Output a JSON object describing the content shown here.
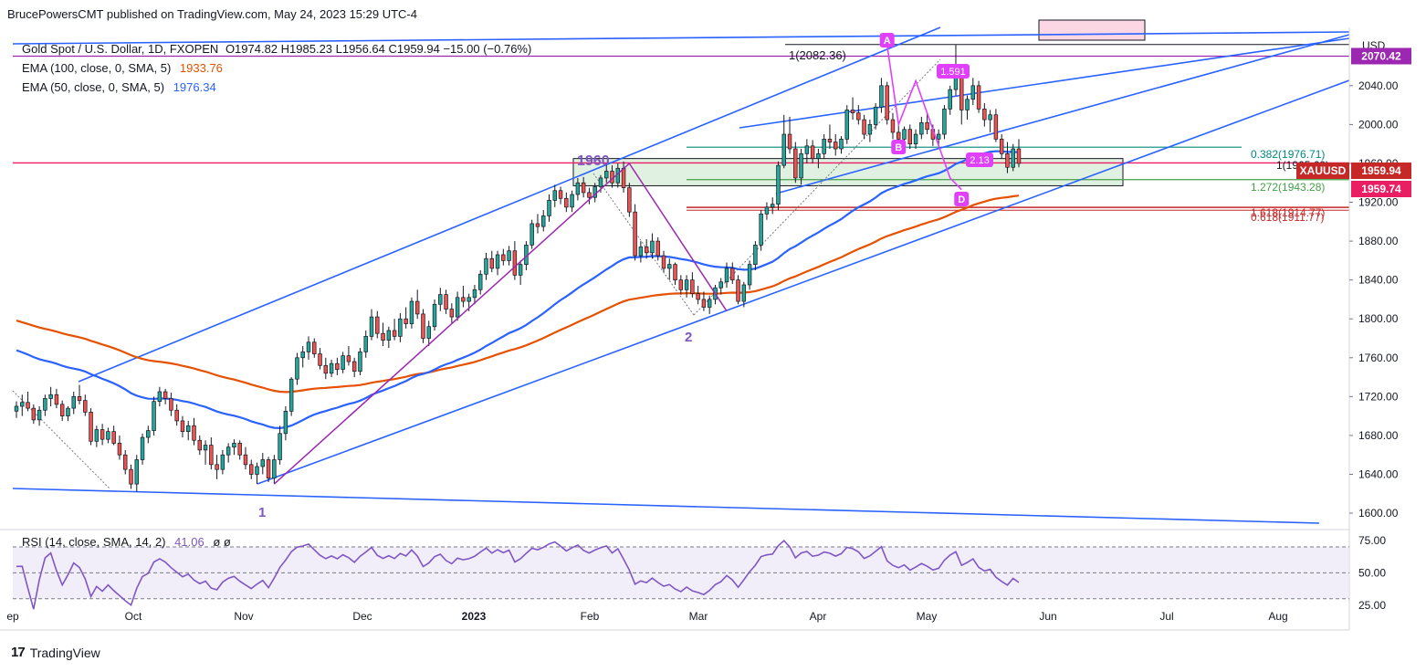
{
  "header": {
    "author": "BrucePowersCMT",
    "published_on": "published on TradingView.com, May 24, 2023 15:29 UTC-4"
  },
  "legend": {
    "symbol": "Gold Spot / U.S. Dollar, 1D, FXOPEN",
    "ohlc": "O1974.82  H1985.23  L1956.64  C1959.94  −15.00 (−0.76%)",
    "ema100_label": "EMA (100, close, 0, SMA, 5)",
    "ema100_value": "1933.76",
    "ema50_label": "EMA (50, close, 0, SMA, 5)",
    "ema50_value": "1976.34",
    "rsi_label": "RSI (14, close, SMA, 14, 2)",
    "rsi_value": "41.06",
    "rsi_extra": "ø  ø"
  },
  "footer": {
    "brand": "TradingView",
    "brand_mark": "17"
  },
  "colors": {
    "up": "#26a69a",
    "down": "#ef5350",
    "ema50": "#2962ff",
    "ema100": "#e65100",
    "channel": "#2962ff",
    "harmonic": "#e040fb",
    "pink_line": "#e91e63",
    "purple_line": "#9c27b0",
    "rsi": "#7e57c2",
    "zone": "#c8e6c9"
  },
  "chart_data": {
    "type": "candlestick",
    "title": "",
    "currency": "USD",
    "ylim": [
      1585,
      2100
    ],
    "y_ticks": [
      1600,
      1640,
      1680,
      1720,
      1760,
      1800,
      1840,
      1880,
      1920,
      1960,
      2000,
      2040
    ],
    "x_ticks": [
      "ep",
      "Oct",
      "Nov",
      "Dec",
      "2023",
      "Feb",
      "Mar",
      "Apr",
      "May",
      "Jun",
      "Jul",
      "Aug"
    ],
    "price_labels": {
      "current_symbol": "XAUUSD",
      "current": "1959.94",
      "secondary": "1959.74",
      "resistance": "2070.42"
    },
    "fib_labels": [
      {
        "text": "0.382(1976.71)",
        "price": 1976.71
      },
      {
        "text": "1(1965.69)",
        "price": 1965.69
      },
      {
        "text": "1.272(1943.28)",
        "price": 1943.28
      },
      {
        "text": "1.618(1914.77)",
        "price": 1914.77
      },
      {
        "text": "0.618(1911.77)",
        "price": 1911.77
      }
    ],
    "annotations": [
      {
        "text": "1960"
      },
      {
        "text": "1"
      },
      {
        "text": "2"
      },
      {
        "text": "1(2082.36)"
      },
      {
        "text": "1.591"
      },
      {
        "text": "2.13"
      },
      {
        "text": "A"
      },
      {
        "text": "B"
      },
      {
        "text": "D"
      }
    ],
    "levels": {
      "pink": 1960.5,
      "purple": 2070.42,
      "top_black": 2082.36
    },
    "candles": [
      [
        1705,
        1715,
        1698,
        1710
      ],
      [
        1710,
        1722,
        1700,
        1714
      ],
      [
        1714,
        1725,
        1705,
        1708
      ],
      [
        1708,
        1712,
        1692,
        1696
      ],
      [
        1696,
        1710,
        1690,
        1706
      ],
      [
        1706,
        1722,
        1700,
        1718
      ],
      [
        1718,
        1730,
        1710,
        1722
      ],
      [
        1722,
        1728,
        1708,
        1712
      ],
      [
        1712,
        1716,
        1695,
        1700
      ],
      [
        1700,
        1710,
        1695,
        1708
      ],
      [
        1708,
        1725,
        1702,
        1720
      ],
      [
        1720,
        1732,
        1712,
        1716
      ],
      [
        1716,
        1722,
        1700,
        1704
      ],
      [
        1704,
        1708,
        1670,
        1674
      ],
      [
        1674,
        1690,
        1668,
        1686
      ],
      [
        1686,
        1692,
        1670,
        1676
      ],
      [
        1676,
        1688,
        1672,
        1684
      ],
      [
        1684,
        1690,
        1670,
        1672
      ],
      [
        1672,
        1680,
        1655,
        1660
      ],
      [
        1660,
        1665,
        1640,
        1645
      ],
      [
        1645,
        1650,
        1625,
        1630
      ],
      [
        1630,
        1660,
        1622,
        1655
      ],
      [
        1655,
        1682,
        1650,
        1678
      ],
      [
        1678,
        1690,
        1672,
        1685
      ],
      [
        1685,
        1720,
        1680,
        1715
      ],
      [
        1715,
        1730,
        1710,
        1725
      ],
      [
        1725,
        1728,
        1712,
        1718
      ],
      [
        1718,
        1724,
        1700,
        1706
      ],
      [
        1706,
        1712,
        1690,
        1695
      ],
      [
        1695,
        1700,
        1678,
        1684
      ],
      [
        1684,
        1695,
        1675,
        1690
      ],
      [
        1690,
        1698,
        1670,
        1675
      ],
      [
        1675,
        1680,
        1660,
        1665
      ],
      [
        1665,
        1675,
        1650,
        1670
      ],
      [
        1670,
        1678,
        1645,
        1650
      ],
      [
        1650,
        1660,
        1635,
        1645
      ],
      [
        1645,
        1665,
        1640,
        1660
      ],
      [
        1660,
        1672,
        1652,
        1668
      ],
      [
        1668,
        1676,
        1660,
        1672
      ],
      [
        1672,
        1675,
        1655,
        1660
      ],
      [
        1660,
        1668,
        1645,
        1650
      ],
      [
        1650,
        1655,
        1635,
        1640
      ],
      [
        1640,
        1652,
        1630,
        1648
      ],
      [
        1648,
        1662,
        1640,
        1655
      ],
      [
        1655,
        1658,
        1632,
        1636
      ],
      [
        1636,
        1660,
        1630,
        1655
      ],
      [
        1655,
        1690,
        1650,
        1682
      ],
      [
        1682,
        1710,
        1675,
        1705
      ],
      [
        1705,
        1740,
        1700,
        1738
      ],
      [
        1738,
        1765,
        1732,
        1760
      ],
      [
        1760,
        1772,
        1750,
        1766
      ],
      [
        1766,
        1782,
        1758,
        1776
      ],
      [
        1776,
        1780,
        1760,
        1764
      ],
      [
        1764,
        1770,
        1748,
        1752
      ],
      [
        1752,
        1760,
        1738,
        1744
      ],
      [
        1744,
        1758,
        1740,
        1754
      ],
      [
        1754,
        1760,
        1742,
        1748
      ],
      [
        1748,
        1766,
        1744,
        1762
      ],
      [
        1762,
        1772,
        1752,
        1756
      ],
      [
        1756,
        1760,
        1740,
        1746
      ],
      [
        1746,
        1770,
        1742,
        1766
      ],
      [
        1766,
        1788,
        1760,
        1782
      ],
      [
        1782,
        1810,
        1778,
        1802
      ],
      [
        1802,
        1808,
        1780,
        1785
      ],
      [
        1785,
        1796,
        1772,
        1778
      ],
      [
        1778,
        1792,
        1770,
        1788
      ],
      [
        1788,
        1800,
        1778,
        1782
      ],
      [
        1782,
        1806,
        1776,
        1800
      ],
      [
        1800,
        1812,
        1790,
        1795
      ],
      [
        1795,
        1822,
        1790,
        1818
      ],
      [
        1818,
        1830,
        1800,
        1805
      ],
      [
        1805,
        1810,
        1775,
        1780
      ],
      [
        1780,
        1798,
        1772,
        1792
      ],
      [
        1792,
        1820,
        1788,
        1815
      ],
      [
        1815,
        1832,
        1808,
        1825
      ],
      [
        1825,
        1830,
        1805,
        1810
      ],
      [
        1810,
        1816,
        1795,
        1802
      ],
      [
        1802,
        1828,
        1798,
        1822
      ],
      [
        1822,
        1834,
        1812,
        1818
      ],
      [
        1818,
        1826,
        1808,
        1822
      ],
      [
        1822,
        1835,
        1815,
        1830
      ],
      [
        1830,
        1850,
        1825,
        1846
      ],
      [
        1846,
        1868,
        1840,
        1862
      ],
      [
        1862,
        1870,
        1848,
        1852
      ],
      [
        1852,
        1870,
        1845,
        1866
      ],
      [
        1866,
        1872,
        1855,
        1860
      ],
      [
        1860,
        1875,
        1855,
        1870
      ],
      [
        1870,
        1880,
        1840,
        1845
      ],
      [
        1845,
        1860,
        1835,
        1856
      ],
      [
        1856,
        1880,
        1850,
        1876
      ],
      [
        1876,
        1902,
        1872,
        1898
      ],
      [
        1898,
        1908,
        1888,
        1895
      ],
      [
        1895,
        1912,
        1890,
        1906
      ],
      [
        1906,
        1928,
        1900,
        1922
      ],
      [
        1922,
        1938,
        1915,
        1932
      ],
      [
        1932,
        1936,
        1918,
        1924
      ],
      [
        1924,
        1930,
        1910,
        1915
      ],
      [
        1915,
        1932,
        1910,
        1928
      ],
      [
        1928,
        1945,
        1922,
        1940
      ],
      [
        1940,
        1946,
        1925,
        1930
      ],
      [
        1930,
        1935,
        1918,
        1925
      ],
      [
        1925,
        1940,
        1920,
        1936
      ],
      [
        1936,
        1948,
        1930,
        1945
      ],
      [
        1945,
        1960,
        1940,
        1952
      ],
      [
        1952,
        1958,
        1935,
        1940
      ],
      [
        1940,
        1960,
        1935,
        1955
      ],
      [
        1955,
        1962,
        1930,
        1935
      ],
      [
        1935,
        1940,
        1905,
        1910
      ],
      [
        1910,
        1918,
        1860,
        1865
      ],
      [
        1865,
        1880,
        1858,
        1874
      ],
      [
        1874,
        1882,
        1862,
        1868
      ],
      [
        1868,
        1888,
        1862,
        1880
      ],
      [
        1880,
        1884,
        1860,
        1865
      ],
      [
        1865,
        1870,
        1848,
        1852
      ],
      [
        1852,
        1862,
        1840,
        1856
      ],
      [
        1856,
        1858,
        1835,
        1840
      ],
      [
        1840,
        1845,
        1825,
        1830
      ],
      [
        1830,
        1845,
        1822,
        1840
      ],
      [
        1840,
        1848,
        1822,
        1826
      ],
      [
        1826,
        1834,
        1815,
        1820
      ],
      [
        1820,
        1828,
        1808,
        1812
      ],
      [
        1812,
        1824,
        1805,
        1820
      ],
      [
        1820,
        1835,
        1815,
        1832
      ],
      [
        1832,
        1842,
        1825,
        1838
      ],
      [
        1838,
        1858,
        1832,
        1852
      ],
      [
        1852,
        1858,
        1836,
        1840
      ],
      [
        1840,
        1845,
        1815,
        1818
      ],
      [
        1818,
        1838,
        1812,
        1835
      ],
      [
        1835,
        1860,
        1830,
        1856
      ],
      [
        1856,
        1880,
        1850,
        1876
      ],
      [
        1876,
        1912,
        1870,
        1908
      ],
      [
        1908,
        1920,
        1902,
        1915
      ],
      [
        1915,
        1925,
        1908,
        1918
      ],
      [
        1918,
        1962,
        1912,
        1958
      ],
      [
        1958,
        2010,
        1955,
        1990
      ],
      [
        1990,
        2008,
        1970,
        1975
      ],
      [
        1975,
        1982,
        1940,
        1945
      ],
      [
        1945,
        1975,
        1938,
        1970
      ],
      [
        1970,
        1985,
        1960,
        1978
      ],
      [
        1978,
        1984,
        1960,
        1965
      ],
      [
        1965,
        1975,
        1955,
        1970
      ],
      [
        1970,
        1990,
        1965,
        1985
      ],
      [
        1985,
        2000,
        1975,
        1982
      ],
      [
        1982,
        1990,
        1968,
        1975
      ],
      [
        1975,
        1988,
        1970,
        1985
      ],
      [
        1985,
        2020,
        1980,
        2015
      ],
      [
        2015,
        2028,
        2005,
        2012
      ],
      [
        2012,
        2020,
        2000,
        2005
      ],
      [
        2005,
        2010,
        1985,
        1990
      ],
      [
        1990,
        2005,
        1982,
        2000
      ],
      [
        2000,
        2022,
        1995,
        2018
      ],
      [
        2018,
        2048,
        2012,
        2040
      ],
      [
        2040,
        2044,
        2000,
        2005
      ],
      [
        2005,
        2012,
        1985,
        1992
      ],
      [
        1992,
        2000,
        1975,
        1985
      ],
      [
        1985,
        1998,
        1978,
        1995
      ],
      [
        1995,
        2000,
        1975,
        1980
      ],
      [
        1980,
        1995,
        1975,
        1990
      ],
      [
        1990,
        2008,
        1985,
        2002
      ],
      [
        2002,
        2012,
        1990,
        1995
      ],
      [
        1995,
        2000,
        1978,
        1985
      ],
      [
        1985,
        1995,
        1978,
        1990
      ],
      [
        1990,
        2020,
        1985,
        2016
      ],
      [
        2016,
        2040,
        2010,
        2036
      ],
      [
        2036,
        2082,
        2030,
        2050
      ],
      [
        2050,
        2058,
        2000,
        2015
      ],
      [
        2015,
        2030,
        2005,
        2026
      ],
      [
        2026,
        2048,
        2020,
        2040
      ],
      [
        2040,
        2045,
        2012,
        2016
      ],
      [
        2016,
        2022,
        1998,
        2005
      ],
      [
        2005,
        2015,
        1992,
        2010
      ],
      [
        2010,
        2016,
        1982,
        1985
      ],
      [
        1985,
        1990,
        1965,
        1970
      ],
      [
        1970,
        1982,
        1950,
        1956
      ],
      [
        1956,
        1980,
        1952,
        1975
      ],
      [
        1975,
        1985,
        1956,
        1960
      ]
    ]
  }
}
